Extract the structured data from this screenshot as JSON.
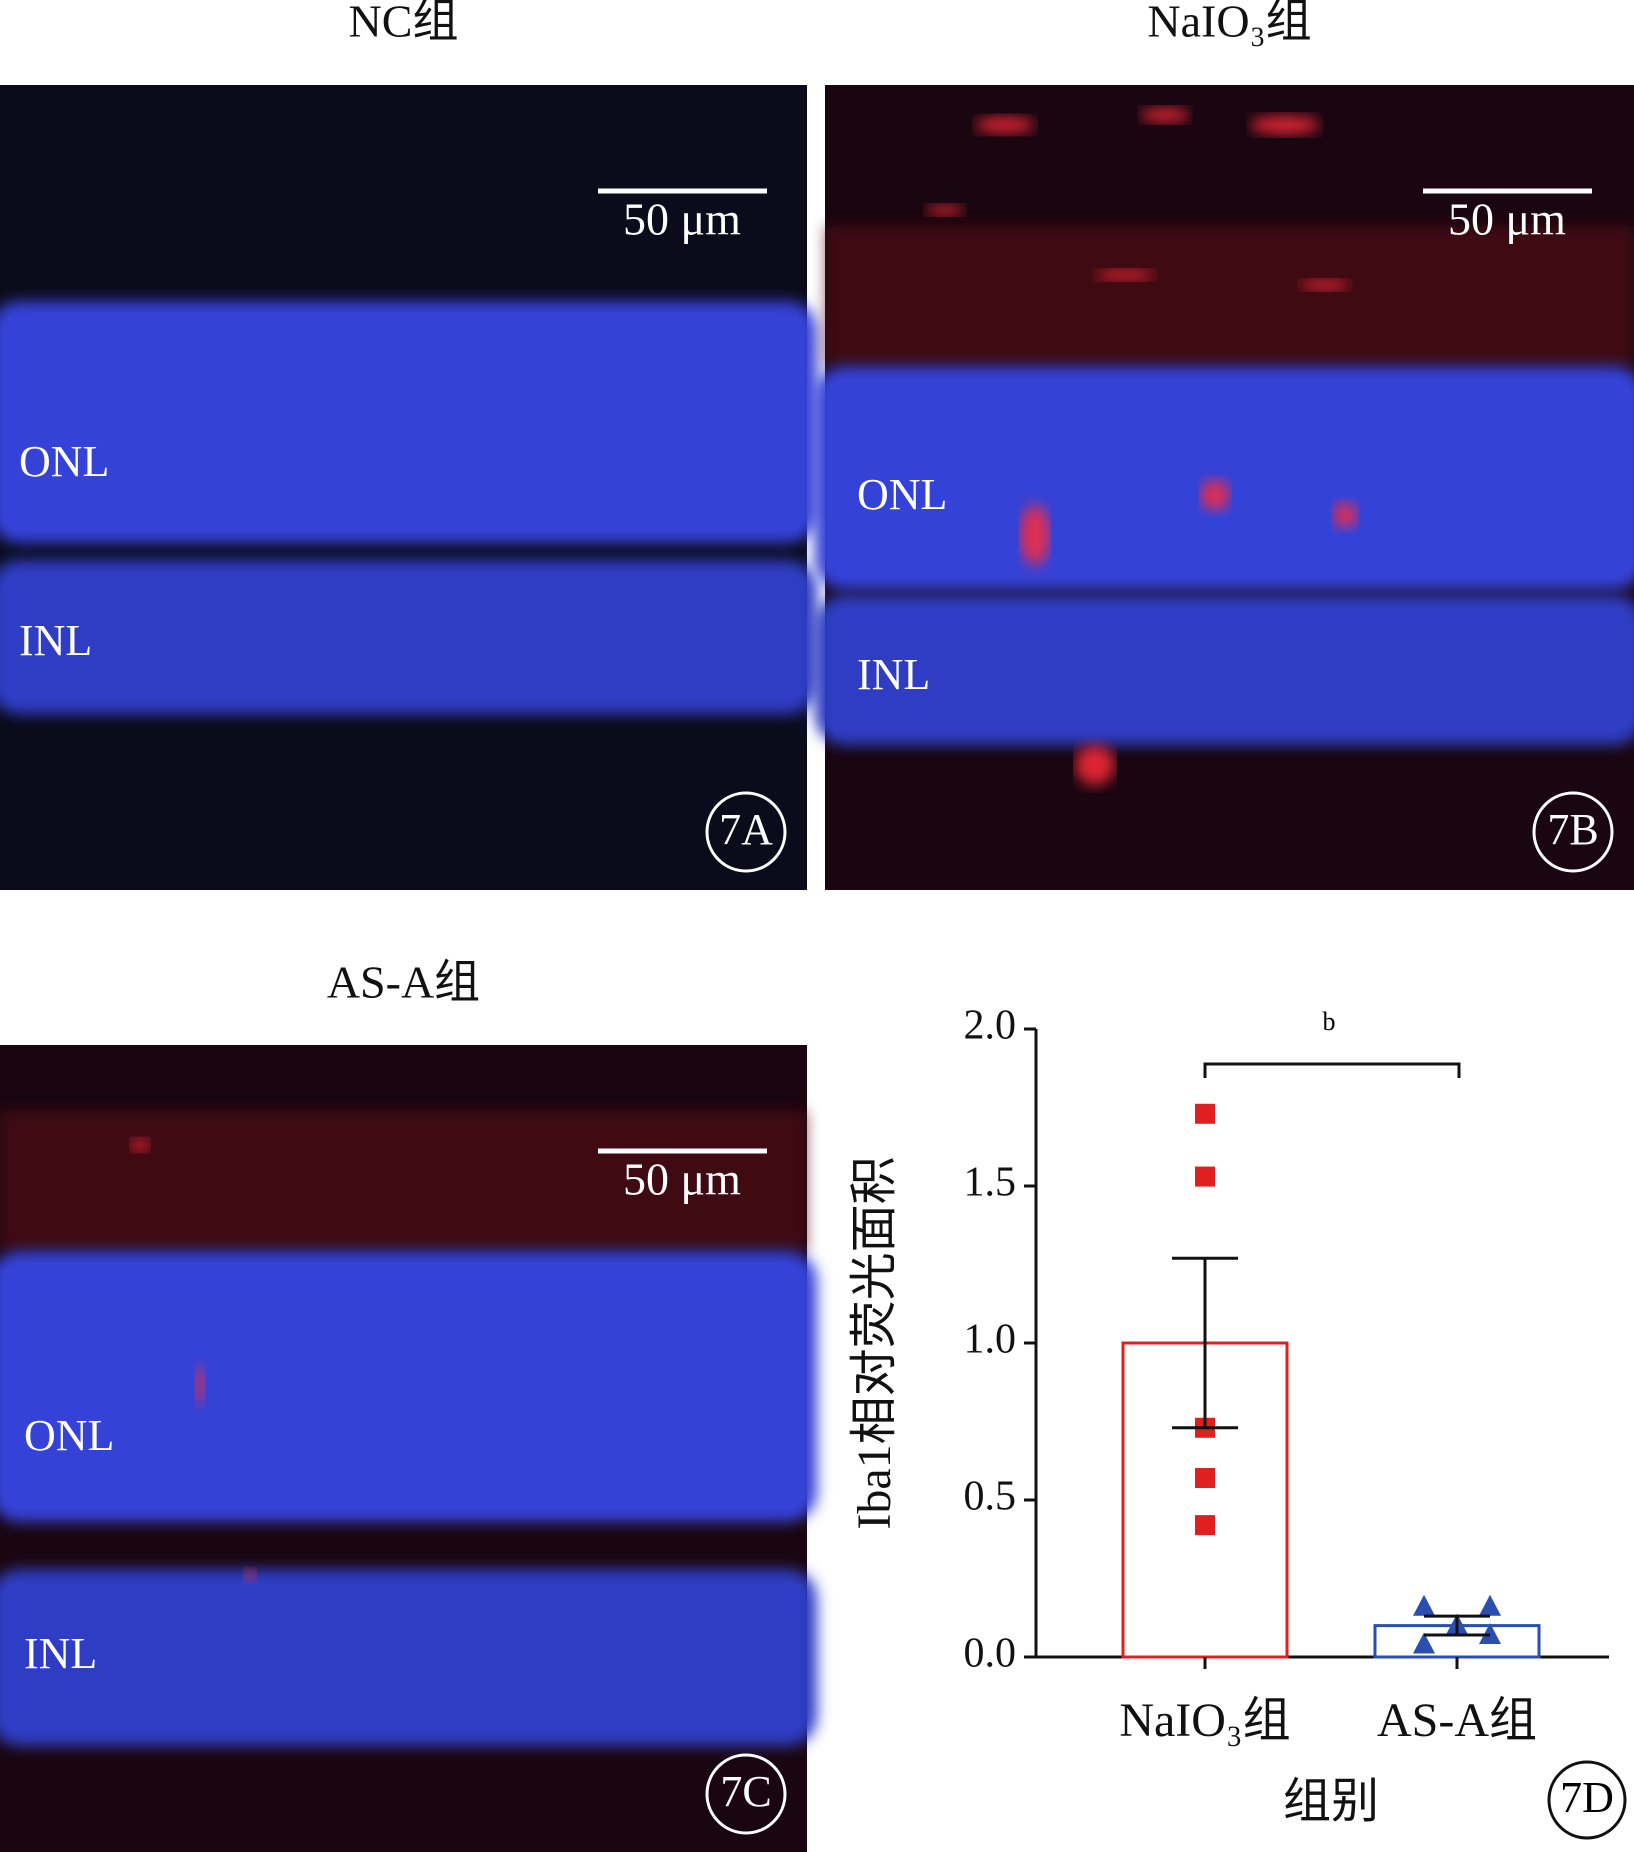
{
  "panels": [
    {
      "title": "NC组",
      "scale_bar": "50 μm",
      "layers": [
        "ONL",
        "INL"
      ],
      "tag": "7A"
    },
    {
      "title": "NaIO₃组",
      "scale_bar": "50 μm",
      "layers": [
        "ONL",
        "INL"
      ],
      "tag": "7B"
    },
    {
      "title": "AS-A组",
      "scale_bar": "50 μm",
      "layers": [
        "ONL",
        "INL"
      ],
      "tag": "7C"
    }
  ],
  "chart_data": {
    "type": "bar",
    "tag": "7D",
    "x_label": "组别",
    "y_label": "Iba1相对荧光面积",
    "categories": [
      "NaIO₃组",
      "AS-A组"
    ],
    "values": [
      1.0,
      0.1
    ],
    "errors": [
      0.27,
      0.03
    ],
    "colors": [
      "#e02020",
      "#2a4fb0"
    ],
    "point_markers": [
      "square",
      "triangle"
    ],
    "points": [
      [
        1.73,
        1.53,
        0.73,
        0.57,
        0.42
      ],
      [
        0.16,
        0.16,
        0.04,
        0.1,
        0.07
      ]
    ],
    "significance": "b",
    "ylim": [
      0,
      2
    ],
    "yticks": [
      {
        "value": 0,
        "label": "0.0"
      },
      0.5,
      {
        "value": 1,
        "label": "1.0"
      },
      1.5,
      {
        "value": 2,
        "label": "2.0"
      }
    ]
  }
}
